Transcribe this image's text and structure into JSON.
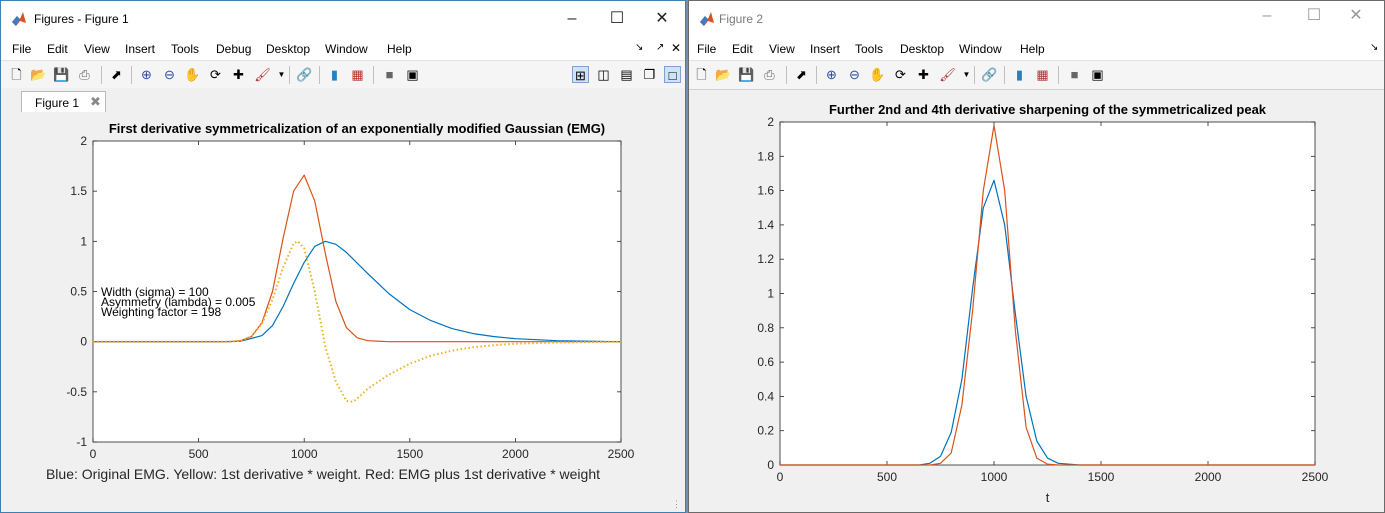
{
  "figure1": {
    "window_title": "Figures - Figure 1",
    "menu": [
      "File",
      "Edit",
      "View",
      "Insert",
      "Tools",
      "Debug",
      "Desktop",
      "Window",
      "Help"
    ],
    "tab_label": "Figure 1",
    "chart_data": {
      "type": "line",
      "title": "First derivative symmetricalization of an exponentially modified Gaussian (EMG)",
      "xlabel": "Blue: Original EMG.    Yellow: 1st derivative * weight.    Red: EMG plus 1st derivative * weight",
      "ylabel": "",
      "xlim": [
        0,
        2500
      ],
      "ylim": [
        -1,
        2
      ],
      "xticks": [
        0,
        500,
        1000,
        1500,
        2000,
        2500
      ],
      "yticks": [
        -1,
        -0.5,
        0,
        0.5,
        1,
        1.5,
        2
      ],
      "annotations": [
        "Width (sigma) = 100",
        "Asymmetry (lambda) = 0.005",
        "Weighting factor = 198"
      ],
      "series": [
        {
          "color": "#0072bd",
          "x": [
            0,
            600,
            700,
            800,
            850,
            900,
            950,
            1000,
            1050,
            1100,
            1150,
            1200,
            1300,
            1400,
            1500,
            1600,
            1700,
            1800,
            1900,
            2000,
            2200,
            2500
          ],
          "y": [
            0,
            0,
            0.005,
            0.06,
            0.16,
            0.35,
            0.58,
            0.79,
            0.95,
            1.0,
            0.97,
            0.89,
            0.68,
            0.48,
            0.32,
            0.21,
            0.13,
            0.08,
            0.05,
            0.03,
            0.01,
            0
          ]
        },
        {
          "color": "#d95319",
          "x": [
            0,
            650,
            700,
            750,
            800,
            850,
            900,
            950,
            1000,
            1050,
            1100,
            1150,
            1200,
            1250,
            1300,
            1400,
            2500
          ],
          "y": [
            0,
            0,
            0.01,
            0.05,
            0.19,
            0.5,
            1.03,
            1.5,
            1.66,
            1.4,
            0.88,
            0.4,
            0.14,
            0.04,
            0.01,
            0,
            0
          ]
        },
        {
          "color": "#edb120",
          "style": "dotted",
          "x": [
            0,
            650,
            700,
            750,
            800,
            850,
            900,
            950,
            970,
            1000,
            1050,
            1100,
            1150,
            1200,
            1230,
            1260,
            1300,
            1400,
            1500,
            1600,
            1700,
            1800,
            1900,
            2000,
            2200,
            2500
          ],
          "y": [
            0,
            0,
            0.01,
            0.05,
            0.18,
            0.42,
            0.74,
            0.98,
            1.0,
            0.93,
            0.5,
            -0.05,
            -0.4,
            -0.59,
            -0.6,
            -0.55,
            -0.47,
            -0.33,
            -0.22,
            -0.14,
            -0.09,
            -0.055,
            -0.035,
            -0.02,
            -0.008,
            0
          ]
        }
      ]
    }
  },
  "figure2": {
    "window_title": "Figure 2",
    "menu": [
      "File",
      "Edit",
      "View",
      "Insert",
      "Tools",
      "Desktop",
      "Window",
      "Help"
    ],
    "chart_data": {
      "type": "line",
      "title": "Further 2nd and 4th derivative sharpening of the symmetricalized peak",
      "xlabel": "t",
      "ylabel": "",
      "xlim": [
        0,
        2500
      ],
      "ylim": [
        0,
        2
      ],
      "xticks": [
        0,
        500,
        1000,
        1500,
        2000,
        2500
      ],
      "yticks": [
        0,
        0.2,
        0.4,
        0.6,
        0.8,
        1,
        1.2,
        1.4,
        1.6,
        1.8,
        2
      ],
      "series": [
        {
          "color": "#0072bd",
          "x": [
            0,
            650,
            700,
            750,
            800,
            850,
            900,
            950,
            1000,
            1050,
            1100,
            1150,
            1200,
            1250,
            1300,
            1400,
            2500
          ],
          "y": [
            0,
            0,
            0.01,
            0.05,
            0.19,
            0.5,
            1.03,
            1.5,
            1.66,
            1.4,
            0.88,
            0.4,
            0.14,
            0.04,
            0.01,
            0,
            0
          ]
        },
        {
          "color": "#d95319",
          "x": [
            0,
            700,
            750,
            800,
            850,
            900,
            950,
            1000,
            1050,
            1100,
            1150,
            1200,
            1250,
            1300,
            1400,
            2500
          ],
          "y": [
            0,
            0,
            0.01,
            0.07,
            0.35,
            0.9,
            1.6,
            1.98,
            1.6,
            0.78,
            0.22,
            0.04,
            0.005,
            0,
            0,
            0
          ]
        }
      ]
    }
  },
  "icons": [
    "matlab-logo-icon",
    "new-figure-icon",
    "open-icon",
    "save-icon",
    "print-icon",
    "pointer-icon",
    "zoom-in-icon",
    "zoom-out-icon",
    "pan-icon",
    "rotate-icon",
    "data-cursor-icon",
    "brush-icon",
    "link-icon",
    "colorbar-icon",
    "legend-icon",
    "hide-plot-tools-icon",
    "show-plot-tools-icon",
    "tile-icon",
    "close-icon",
    "minimize-icon",
    "maximize-icon"
  ]
}
